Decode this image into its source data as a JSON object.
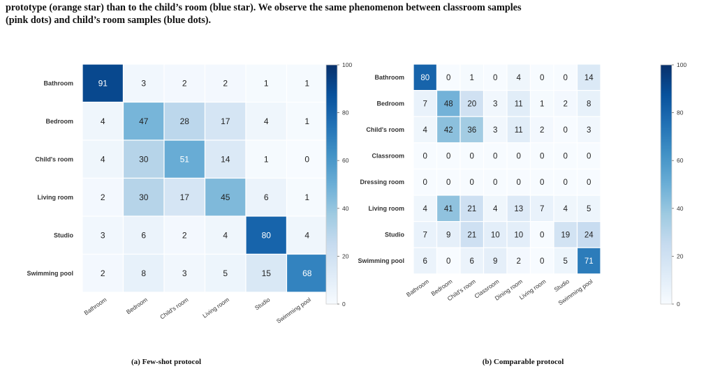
{
  "intro": {
    "line1": "prototype (orange star) than to the child’s room (blue star). We observe the same phenomenon between classroom samples",
    "line2": "(pink dots) and child’s room samples (blue dots)."
  },
  "captions": {
    "left": "(a) Few-shot protocol",
    "right": "(b) Comparable protocol"
  },
  "colors": {
    "low": "#f7fbff",
    "high": "#08306b"
  },
  "chart_data": [
    {
      "type": "heatmap",
      "caption": "(a) Few-shot protocol",
      "rows": [
        "Bathroom",
        "Bedroom",
        "Child's room",
        "Living room",
        "Studio",
        "Swimming pool"
      ],
      "cols": [
        "Bathroom",
        "Bedroom",
        "Child's room",
        "Living room",
        "Studio",
        "Swimming pool"
      ],
      "values": [
        [
          91,
          3,
          2,
          2,
          1,
          1
        ],
        [
          4,
          47,
          28,
          17,
          4,
          1
        ],
        [
          4,
          30,
          51,
          14,
          1,
          0
        ],
        [
          2,
          30,
          17,
          45,
          6,
          1
        ],
        [
          3,
          6,
          2,
          4,
          80,
          4
        ],
        [
          2,
          8,
          3,
          5,
          15,
          68
        ]
      ],
      "colorbar": {
        "range": [
          0,
          100
        ],
        "ticks": [
          0,
          20,
          40,
          60,
          80,
          100
        ]
      }
    },
    {
      "type": "heatmap",
      "caption": "(b) Comparable protocol",
      "rows": [
        "Bathroom",
        "Bedroom",
        "Child's room",
        "Classroom",
        "Dressing room",
        "Living room",
        "Studio",
        "Swimming pool"
      ],
      "cols": [
        "Bathroom",
        "Bedroom",
        "Child's room",
        "Classroom",
        "Dining room",
        "Living room",
        "Studio",
        "Swimming pool"
      ],
      "values": [
        [
          80,
          0,
          1,
          0,
          4,
          0,
          0,
          14
        ],
        [
          7,
          48,
          20,
          3,
          11,
          1,
          2,
          8
        ],
        [
          4,
          42,
          36,
          3,
          11,
          2,
          0,
          3
        ],
        [
          0,
          0,
          0,
          0,
          0,
          0,
          0,
          0
        ],
        [
          0,
          0,
          0,
          0,
          0,
          0,
          0,
          0
        ],
        [
          4,
          41,
          21,
          4,
          13,
          7,
          4,
          5
        ],
        [
          7,
          9,
          21,
          10,
          10,
          0,
          19,
          24
        ],
        [
          6,
          0,
          6,
          9,
          2,
          0,
          5,
          71
        ]
      ],
      "colorbar": {
        "range": [
          0,
          100
        ],
        "ticks": [
          0,
          20,
          40,
          60,
          80,
          100
        ]
      }
    }
  ]
}
